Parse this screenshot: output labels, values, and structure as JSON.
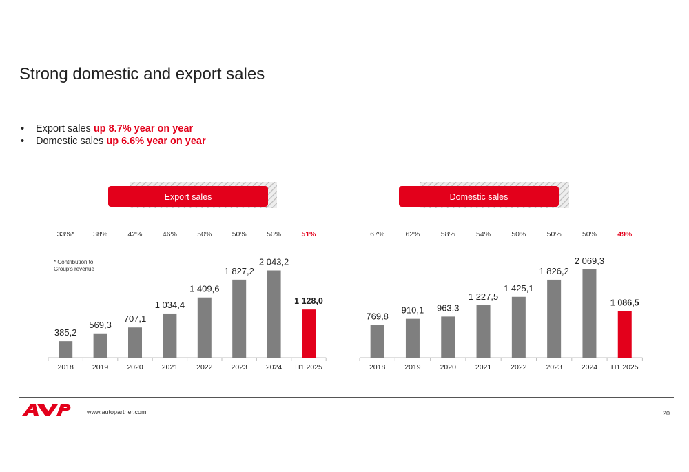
{
  "title": "Strong domestic and export sales",
  "bullets": [
    {
      "text": "Export sales ",
      "highlight": "up 8.7% year on year"
    },
    {
      "text": "Domestic sales ",
      "highlight": "up 6.6% year on year"
    }
  ],
  "footer": {
    "url": "www.autopartner.com",
    "page": "20"
  },
  "colors": {
    "accent": "#e3001b",
    "bar": "#7f7f7f",
    "text": "#222222"
  },
  "chart_data": [
    {
      "type": "bar",
      "title": "Export sales",
      "categories": [
        "2018",
        "2019",
        "2020",
        "2021",
        "2022",
        "2023",
        "2024",
        "H1 2025"
      ],
      "values": [
        385.2,
        569.3,
        707.1,
        1034.4,
        1409.6,
        1827.2,
        2043.2,
        1128.0
      ],
      "value_labels": [
        "385,2",
        "569,3",
        "707,1",
        "1 034,4",
        "1 409,6",
        "1 827,2",
        "2 043,2",
        "1 128,0"
      ],
      "shares": [
        "33%*",
        "38%",
        "42%",
        "46%",
        "50%",
        "50%",
        "50%",
        "51%"
      ],
      "highlight_index": 7,
      "note": "* Contribution to Group's revenue",
      "ylim": [
        0,
        2100
      ]
    },
    {
      "type": "bar",
      "title": "Domestic sales",
      "categories": [
        "2018",
        "2019",
        "2020",
        "2021",
        "2022",
        "2023",
        "2024",
        "H1 2025"
      ],
      "values": [
        769.8,
        910.1,
        963.3,
        1227.5,
        1425.1,
        1826.2,
        2069.3,
        1086.5
      ],
      "value_labels": [
        "769,8",
        "910,1",
        "963,3",
        "1 227,5",
        "1 425,1",
        "1 826,2",
        "2 069,3",
        "1 086,5"
      ],
      "shares": [
        "67%",
        "62%",
        "58%",
        "54%",
        "50%",
        "50%",
        "50%",
        "49%"
      ],
      "highlight_index": 7,
      "ylim": [
        0,
        2100
      ]
    }
  ]
}
